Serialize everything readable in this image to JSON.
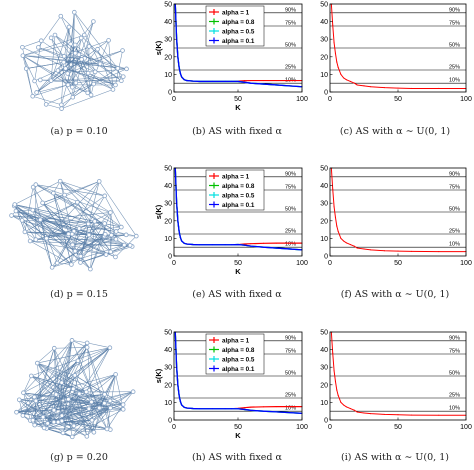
{
  "figure": {
    "rows": [
      {
        "graph_caption": "(a) p = 0.10",
        "fixed_caption": "(b) AS with fixed α",
        "uniform_caption": "(c) AS with α ∼ U(0, 1)",
        "seed": 11
      },
      {
        "graph_caption": "(d) p = 0.15",
        "fixed_caption": "(e) AS with fixed α",
        "uniform_caption": "(f) AS with α ∼ U(0, 1)",
        "seed": 23
      },
      {
        "graph_caption": "(g) p = 0.20",
        "fixed_caption": "(h) AS with fixed α",
        "uniform_caption": "(i) AS with α ∼ U(0, 1)",
        "seed": 37
      }
    ],
    "colors": {
      "graph_node": "#8aa6c8",
      "graph_edge": "#5b7fa8",
      "red": "#ff0000",
      "green": "#00c000",
      "cyan": "#00e0e0",
      "blue": "#0000ff",
      "ref": "#000000"
    }
  },
  "chart_data": [
    {
      "type": "line",
      "panel": "b",
      "xlabel": "K",
      "ylabel": "s(K)",
      "xlim": [
        0,
        100
      ],
      "ylim": [
        0,
        50
      ],
      "xticks": [
        0,
        50,
        100
      ],
      "yticks": [
        0,
        10,
        20,
        30,
        40,
        50
      ],
      "reference_lines": [
        {
          "label": "90%",
          "y": 45
        },
        {
          "label": "75%",
          "y": 37.5
        },
        {
          "label": "50%",
          "y": 25
        },
        {
          "label": "25%",
          "y": 12.5
        },
        {
          "label": "10%",
          "y": 5
        }
      ],
      "legend": {
        "position": "top",
        "entries": [
          "alpha = 1",
          "alpha = 0.8",
          "alpha = 0.5",
          "alpha = 0.1"
        ]
      },
      "x": [
        1,
        2,
        3,
        4,
        5,
        6,
        8,
        10,
        15,
        20,
        30,
        40,
        45,
        50,
        55,
        60,
        70,
        80,
        90,
        100
      ],
      "series": [
        {
          "name": "alpha = 1",
          "color": "#ff0000",
          "values": [
            50,
            31,
            20,
            14,
            10.5,
            8.5,
            7,
            6.5,
            6.2,
            6,
            6,
            6,
            6,
            6.2,
            6.4,
            6.5,
            6.5,
            6.5,
            6.5,
            6.5
          ]
        },
        {
          "name": "alpha = 0.8",
          "color": "#00c000",
          "values": [
            50,
            31,
            20,
            14,
            10.5,
            8.5,
            7,
            6.5,
            6.2,
            6,
            6,
            6,
            6,
            6,
            5.5,
            5,
            4.5,
            4,
            3.5,
            3
          ]
        },
        {
          "name": "alpha = 0.5",
          "color": "#00e0e0",
          "values": [
            50,
            31,
            20,
            14,
            10.5,
            8.5,
            7,
            6.5,
            6.2,
            6,
            6,
            6,
            6,
            6,
            5.5,
            5,
            4.5,
            4,
            3.5,
            3
          ]
        },
        {
          "name": "alpha = 0.1",
          "color": "#0000ff",
          "values": [
            50,
            31,
            20,
            14,
            10.5,
            8.5,
            7,
            6.5,
            6.2,
            6,
            6,
            6,
            6,
            6,
            5.5,
            5,
            4.5,
            4,
            3.5,
            3
          ]
        }
      ]
    },
    {
      "type": "line",
      "panel": "c",
      "xlabel": "",
      "ylabel": "",
      "xlim": [
        0,
        100
      ],
      "ylim": [
        0,
        50
      ],
      "xticks": [
        0,
        50,
        100
      ],
      "yticks": [
        0,
        10,
        20,
        30,
        40,
        50
      ],
      "reference_lines": [
        {
          "label": "90%",
          "y": 45
        },
        {
          "label": "75%",
          "y": 37.5
        },
        {
          "label": "50%",
          "y": 25
        },
        {
          "label": "25%",
          "y": 12.5
        },
        {
          "label": "10%",
          "y": 5
        }
      ],
      "x": [
        1,
        2,
        3,
        4,
        5,
        6,
        7,
        8,
        10,
        12,
        15,
        18,
        20,
        25,
        30,
        40,
        50,
        60,
        80,
        100
      ],
      "series": [
        {
          "name": "",
          "color": "#ff0000",
          "values": [
            50,
            38,
            28,
            22,
            17,
            14,
            12,
            10,
            8,
            7,
            6,
            5,
            4,
            3.5,
            3,
            2.5,
            2.2,
            2,
            2,
            2
          ]
        }
      ]
    },
    {
      "type": "line",
      "panel": "e",
      "xlabel": "K",
      "ylabel": "s(K)",
      "xlim": [
        0,
        100
      ],
      "ylim": [
        0,
        50
      ],
      "xticks": [
        0,
        50,
        100
      ],
      "yticks": [
        0,
        10,
        20,
        30,
        40,
        50
      ],
      "reference_lines": [
        {
          "label": "90%",
          "y": 45
        },
        {
          "label": "75%",
          "y": 37.5
        },
        {
          "label": "50%",
          "y": 25
        },
        {
          "label": "25%",
          "y": 12.5
        },
        {
          "label": "10%",
          "y": 5
        }
      ],
      "legend": {
        "position": "top",
        "entries": [
          "alpha = 1",
          "alpha = 0.8",
          "alpha = 0.5",
          "alpha = 0.1"
        ]
      },
      "x": [
        1,
        2,
        3,
        4,
        5,
        6,
        8,
        10,
        15,
        20,
        30,
        40,
        45,
        50,
        55,
        60,
        70,
        80,
        90,
        100
      ],
      "series": [
        {
          "name": "alpha = 1",
          "color": "#ff0000",
          "values": [
            50,
            31,
            20,
            14,
            10.5,
            8.5,
            7.2,
            6.8,
            6.5,
            6.4,
            6.4,
            6.4,
            6.4,
            6.5,
            6.8,
            7,
            7.2,
            7.3,
            7.3,
            7.3
          ]
        },
        {
          "name": "alpha = 0.8",
          "color": "#00c000",
          "values": [
            50,
            31,
            20,
            14,
            10.5,
            8.5,
            7.2,
            6.8,
            6.5,
            6.4,
            6.4,
            6.4,
            6.4,
            6.5,
            6.2,
            5.6,
            5,
            4.5,
            4,
            3.5
          ]
        },
        {
          "name": "alpha = 0.5",
          "color": "#00e0e0",
          "values": [
            50,
            31,
            20,
            14,
            10.5,
            8.5,
            7.2,
            6.8,
            6.5,
            6.4,
            6.4,
            6.4,
            6.4,
            6.5,
            6.2,
            5.6,
            5,
            4.5,
            4,
            3.5
          ]
        },
        {
          "name": "alpha = 0.1",
          "color": "#0000ff",
          "values": [
            50,
            31,
            20,
            14,
            10.5,
            8.5,
            7.2,
            6.8,
            6.5,
            6.4,
            6.4,
            6.4,
            6.4,
            6.5,
            6.2,
            5.6,
            5,
            4.5,
            4,
            3.5
          ]
        }
      ]
    },
    {
      "type": "line",
      "panel": "f",
      "xlabel": "",
      "ylabel": "",
      "xlim": [
        0,
        100
      ],
      "ylim": [
        0,
        50
      ],
      "xticks": [
        0,
        50,
        100
      ],
      "yticks": [
        0,
        10,
        20,
        30,
        40,
        50
      ],
      "reference_lines": [
        {
          "label": "90%",
          "y": 45
        },
        {
          "label": "75%",
          "y": 37.5
        },
        {
          "label": "50%",
          "y": 25
        },
        {
          "label": "25%",
          "y": 12.5
        },
        {
          "label": "10%",
          "y": 5
        }
      ],
      "x": [
        1,
        2,
        3,
        4,
        5,
        6,
        7,
        8,
        10,
        12,
        15,
        18,
        20,
        25,
        30,
        40,
        50,
        60,
        80,
        100
      ],
      "series": [
        {
          "name": "",
          "color": "#ff0000",
          "values": [
            50,
            38,
            28,
            22,
            17,
            14,
            12,
            10,
            8.5,
            7.5,
            6.5,
            5.5,
            4.5,
            4,
            3.5,
            3,
            2.8,
            2.6,
            2.5,
            2.5
          ]
        }
      ]
    },
    {
      "type": "line",
      "panel": "h",
      "xlabel": "K",
      "ylabel": "s(K)",
      "xlim": [
        0,
        100
      ],
      "ylim": [
        0,
        50
      ],
      "xticks": [
        0,
        50,
        100
      ],
      "yticks": [
        0,
        10,
        20,
        30,
        40,
        50
      ],
      "reference_lines": [
        {
          "label": "90%",
          "y": 45
        },
        {
          "label": "75%",
          "y": 37.5
        },
        {
          "label": "50%",
          "y": 25
        },
        {
          "label": "25%",
          "y": 12.5
        },
        {
          "label": "10%",
          "y": 5
        }
      ],
      "legend": {
        "position": "top",
        "entries": [
          "alpha = 1",
          "alpha = 0.8",
          "alpha = 0.5",
          "alpha = 0.1"
        ]
      },
      "x": [
        1,
        2,
        3,
        4,
        5,
        6,
        8,
        10,
        15,
        20,
        30,
        40,
        45,
        50,
        55,
        60,
        70,
        80,
        90,
        100
      ],
      "series": [
        {
          "name": "alpha = 1",
          "color": "#ff0000",
          "values": [
            50,
            31,
            20,
            14,
            10.5,
            8.5,
            7.2,
            6.8,
            6.5,
            6.4,
            6.4,
            6.4,
            6.4,
            6.6,
            7,
            7.3,
            7.5,
            7.6,
            7.6,
            7.6
          ]
        },
        {
          "name": "alpha = 0.8",
          "color": "#00c000",
          "values": [
            50,
            31,
            20,
            14,
            10.5,
            8.5,
            7.2,
            6.8,
            6.5,
            6.4,
            6.4,
            6.4,
            6.4,
            6.4,
            6,
            5.5,
            5,
            4.6,
            4.2,
            3.8
          ]
        },
        {
          "name": "alpha = 0.5",
          "color": "#00e0e0",
          "values": [
            50,
            31,
            20,
            14,
            10.5,
            8.5,
            7.2,
            6.8,
            6.5,
            6.4,
            6.4,
            6.4,
            6.4,
            6.4,
            6,
            5.5,
            5,
            4.6,
            4.2,
            3.8
          ]
        },
        {
          "name": "alpha = 0.1",
          "color": "#0000ff",
          "values": [
            50,
            31,
            20,
            14,
            10.5,
            8.5,
            7.2,
            6.8,
            6.5,
            6.4,
            6.4,
            6.4,
            6.4,
            6.4,
            6,
            5.5,
            5,
            4.6,
            4.2,
            3.8
          ]
        }
      ]
    },
    {
      "type": "line",
      "panel": "i",
      "xlabel": "",
      "ylabel": "",
      "xlim": [
        0,
        100
      ],
      "ylim": [
        0,
        50
      ],
      "xticks": [
        0,
        50,
        100
      ],
      "yticks": [
        0,
        10,
        20,
        30,
        40,
        50
      ],
      "reference_lines": [
        {
          "label": "90%",
          "y": 45
        },
        {
          "label": "75%",
          "y": 37.5
        },
        {
          "label": "50%",
          "y": 25
        },
        {
          "label": "25%",
          "y": 12.5
        },
        {
          "label": "10%",
          "y": 5
        }
      ],
      "x": [
        1,
        2,
        3,
        4,
        5,
        6,
        7,
        8,
        10,
        12,
        15,
        18,
        20,
        25,
        30,
        40,
        50,
        60,
        80,
        100
      ],
      "series": [
        {
          "name": "",
          "color": "#ff0000",
          "values": [
            50,
            38,
            28,
            22,
            17,
            14,
            12,
            10,
            8.5,
            7.5,
            6.5,
            5.5,
            4.5,
            4,
            3.6,
            3.2,
            3,
            2.8,
            2.7,
            2.7
          ]
        }
      ]
    }
  ]
}
